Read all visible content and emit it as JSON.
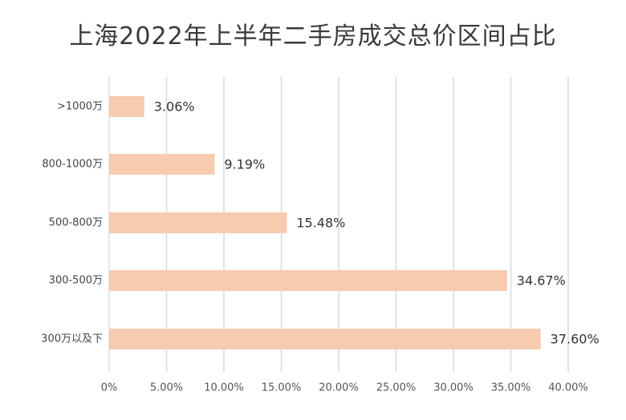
{
  "chart_data": {
    "type": "bar",
    "orientation": "horizontal",
    "title": "上海2022年上半年二手房成交总价区间占比",
    "categories": [
      ">1000万",
      "800-1000万",
      "500-800万",
      "300-500万",
      "300万以及下"
    ],
    "values": [
      3.06,
      9.19,
      15.48,
      34.67,
      37.6
    ],
    "data_labels": [
      "3.06%",
      "9.19%",
      "15.48%",
      "34.67%",
      "37.60%"
    ],
    "xlim": [
      0,
      40
    ],
    "x_ticks": [
      0,
      5,
      10,
      15,
      20,
      25,
      30,
      35,
      40
    ],
    "x_tick_labels": [
      "0%",
      "5.00%",
      "10.00%",
      "15.00%",
      "20.00%",
      "25.00%",
      "30.00%",
      "35.00%",
      "40.00%"
    ],
    "xlabel": "",
    "ylabel": "",
    "grid": "vertical",
    "legend": "none",
    "bar_color": "#f7cbb0",
    "grid_color": "#d9d9d9"
  }
}
